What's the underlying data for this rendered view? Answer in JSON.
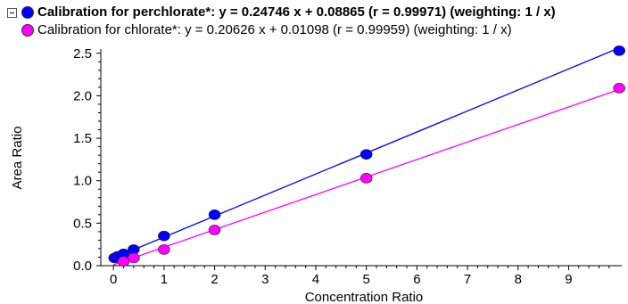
{
  "legend": {
    "collapse_icon": "minus-box-icon",
    "items": [
      {
        "label": "Calibration for perchlorate*: y = 0.24746 x + 0.08865 (r = 0.99971)  (weighting: 1 / x)",
        "color": "#0000ff",
        "marker": "circle"
      },
      {
        "label": "Calibration for chlorate*: y = 0.20626 x + 0.01098 (r = 0.99959)  (weighting: 1 / x)",
        "color": "#ff00ff",
        "marker": "circle"
      }
    ]
  },
  "chart_data": {
    "type": "scatter",
    "xlabel": "Concentration Ratio",
    "ylabel": "Area Ratio",
    "xlim": [
      -0.25,
      10.05
    ],
    "ylim": [
      0,
      2.55
    ],
    "xticks": [
      "0",
      "1",
      "2",
      "3",
      "4",
      "5",
      "6",
      "7",
      "8",
      "9"
    ],
    "yticks": [
      "0.0",
      "0.5",
      "1.0",
      "1.5",
      "2.0",
      "2.5"
    ],
    "grid": false,
    "legend_position": "top-left",
    "series": [
      {
        "name": "Calibration for perchlorate*",
        "color": "#0000ff",
        "fit": {
          "slope": 0.24746,
          "intercept": 0.08865
        },
        "points": [
          {
            "x": 0.02,
            "y": 0.09
          },
          {
            "x": 0.08,
            "y": 0.11
          },
          {
            "x": 0.2,
            "y": 0.14
          },
          {
            "x": 0.4,
            "y": 0.19
          },
          {
            "x": 1,
            "y": 0.35
          },
          {
            "x": 2,
            "y": 0.6
          },
          {
            "x": 5,
            "y": 1.31
          },
          {
            "x": 10,
            "y": 2.53
          }
        ]
      },
      {
        "name": "Calibration for chlorate*",
        "color": "#ff00ff",
        "fit": {
          "slope": 0.20626,
          "intercept": 0.01098
        },
        "points": [
          {
            "x": 0.2,
            "y": 0.05
          },
          {
            "x": 0.4,
            "y": 0.09
          },
          {
            "x": 1,
            "y": 0.19
          },
          {
            "x": 2,
            "y": 0.42
          },
          {
            "x": 5,
            "y": 1.03
          },
          {
            "x": 10,
            "y": 2.09
          }
        ]
      }
    ]
  }
}
